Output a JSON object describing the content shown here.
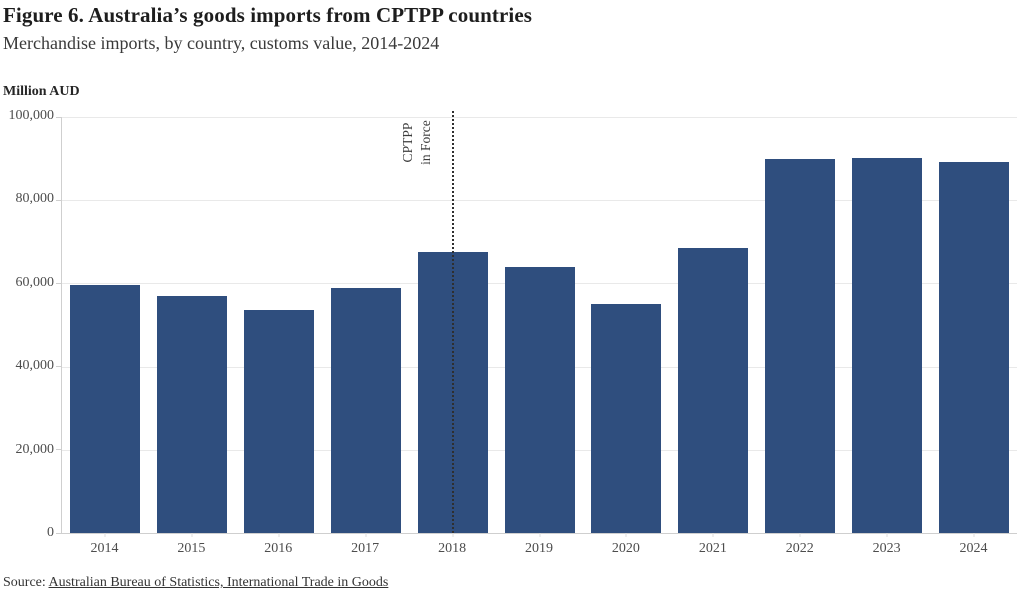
{
  "header": {
    "title": "Figure 6. Australia’s goods imports from CPTPP countries",
    "subtitle": "Merchandise imports, by country, customs value, 2014-2024"
  },
  "chart_data": {
    "type": "bar",
    "title": "Figure 6. Australia’s goods imports from CPTPP countries",
    "subtitle": "Merchandise imports, by country, customs value, 2014-2024",
    "y_axis_title": "Million AUD",
    "categories": [
      "2014",
      "2015",
      "2016",
      "2017",
      "2018",
      "2019",
      "2020",
      "2021",
      "2022",
      "2023",
      "2024"
    ],
    "values": [
      59500,
      57000,
      53500,
      59000,
      67500,
      64000,
      55100,
      68600,
      89800,
      90200,
      89100
    ],
    "ylim": [
      0,
      100000
    ],
    "yticks": [
      {
        "label": "100,000",
        "value": 100000
      },
      {
        "label": "80,000",
        "value": 80000
      },
      {
        "label": "60,000",
        "value": 60000
      },
      {
        "label": "40,000",
        "value": 40000
      },
      {
        "label": "20,000",
        "value": 20000
      },
      {
        "label": "0",
        "value": 0
      }
    ],
    "grid": "horizontal",
    "legend": "none",
    "annotation": {
      "lines": [
        "CPTPP",
        "in Force"
      ],
      "category": "2018",
      "line_style": "dotted"
    }
  },
  "colors": {
    "bar": "#2f4e7e",
    "gridline": "#e9e9e9",
    "axis": "#cfcfcf",
    "reference_line": "#2f2f2f"
  },
  "footer": {
    "source_prefix": "Source: ",
    "source_link": "Australian Bureau of Statistics, International Trade in Goods"
  }
}
